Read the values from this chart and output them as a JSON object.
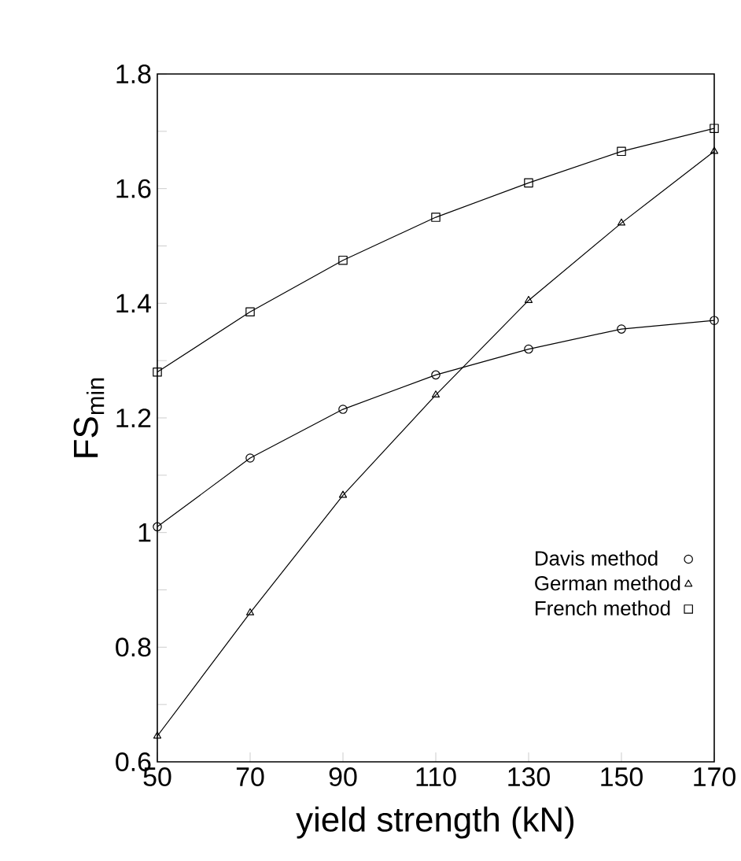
{
  "chart_data": {
    "type": "line",
    "xlabel": "yield strength (kN)",
    "ylabel": "FS$_{min}$",
    "x": [
      50,
      70,
      90,
      110,
      130,
      150,
      170
    ],
    "series": [
      {
        "name": "Davis method",
        "color": "#000000",
        "marker": "circle",
        "values": [
          1.01,
          1.13,
          1.215,
          1.275,
          1.32,
          1.355,
          1.37
        ]
      },
      {
        "name": "German method",
        "color": "#000000",
        "marker": "triangle",
        "values": [
          0.645,
          0.86,
          1.065,
          1.24,
          1.405,
          1.54,
          1.665
        ]
      },
      {
        "name": "French method",
        "color": "#000000",
        "marker": "square",
        "values": [
          1.28,
          1.385,
          1.475,
          1.55,
          1.61,
          1.665,
          1.705
        ]
      }
    ],
    "xlim": [
      50,
      170
    ],
    "ylim": [
      0.6,
      1.8
    ],
    "xticks": [
      50,
      70,
      90,
      110,
      130,
      150,
      170
    ],
    "yticks": [
      0.6,
      {
        "value": 0.7,
        "label": null
      },
      0.8,
      {
        "value": 0.9,
        "label": null
      },
      1,
      {
        "value": 1.1,
        "label": null
      },
      1.2,
      {
        "value": 1.3,
        "label": null
      },
      1.4,
      {
        "value": 1.5,
        "label": null
      },
      1.6,
      {
        "value": 1.7,
        "label": null
      },
      1.8
    ],
    "grid": false,
    "legend": "bottom right",
    "line_style": "solid"
  }
}
